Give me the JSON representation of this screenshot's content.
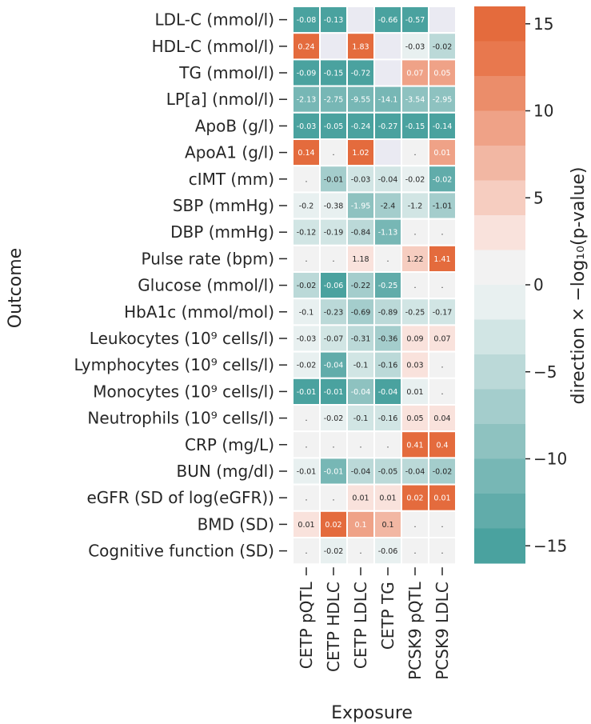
{
  "chart_data": {
    "type": "heatmap",
    "xlabel": "Exposure",
    "ylabel": "Outcome",
    "colorbar_label": "direction × −log₁₀(p-value)",
    "colorbar_ticks": [
      "15",
      "10",
      "5",
      "0",
      "−5",
      "−10",
      "−15"
    ],
    "colorbar_tick_values": [
      15,
      10,
      5,
      0,
      -5,
      -10,
      -15
    ],
    "colorbar_range": [
      -16,
      16
    ],
    "columns": [
      "CETP pQTL",
      "CETP HDLC",
      "CETP LDLC",
      "CETP TG",
      "PCSK9 pQTL",
      "PCSK9 LDLC"
    ],
    "rows": [
      {
        "label": "LDL-C (mmol/l)",
        "values": [
          -16,
          -16,
          null,
          -16,
          -16,
          null
        ],
        "labels": [
          "-0.08",
          "-0.13",
          "",
          "-0.66",
          "-0.57",
          ""
        ]
      },
      {
        "label": "HDL-C (mmol/l)",
        "values": [
          16,
          null,
          16,
          null,
          -0.5,
          -5.5
        ],
        "labels": [
          "0.24",
          "",
          "1.83",
          "",
          "-0.03",
          "-0.02"
        ]
      },
      {
        "label": "TG (mmol/l)",
        "values": [
          -16,
          -16,
          -16,
          null,
          9,
          8
        ],
        "labels": [
          "-0.09",
          "-0.15",
          "-0.72",
          "",
          "0.07",
          "0.05"
        ]
      },
      {
        "label": "LP[a] (nmol/l)",
        "values": [
          -11,
          -11,
          -11,
          -11,
          -8,
          -8
        ],
        "labels": [
          "-2.13",
          "-2.75",
          "-9.55",
          "-14.1",
          "-3.54",
          "-2.95"
        ]
      },
      {
        "label": "ApoB (g/l)",
        "values": [
          -16,
          -16,
          -16,
          -16,
          -16,
          -16
        ],
        "labels": [
          "-0.03",
          "-0.05",
          "-0.24",
          "-0.27",
          "-0.15",
          "-0.14"
        ]
      },
      {
        "label": "ApoA1 (g/l)",
        "values": [
          16,
          0,
          16,
          null,
          0,
          8
        ],
        "labels": [
          "0.14",
          ".",
          "1.02",
          "",
          ".",
          "0.01"
        ]
      },
      {
        "label": "cIMT (mm)",
        "values": [
          0,
          -6,
          -2,
          -2,
          -1,
          -13
        ],
        "labels": [
          ".",
          "-0.01",
          "-0.03",
          "-0.04",
          "-0.02",
          "-0.02"
        ]
      },
      {
        "label": "SBP (mmHg)",
        "values": [
          -1,
          -1,
          -9,
          -6,
          -2,
          -7
        ],
        "labels": [
          "-0.2",
          "-0.38",
          "-1.95",
          "-2.4",
          "-1.2",
          "-1.01"
        ]
      },
      {
        "label": "DBP (mmHg)",
        "values": [
          -2,
          -3,
          -4,
          -10,
          0,
          0
        ],
        "labels": [
          "-0.12",
          "-0.19",
          "-0.84",
          "-1.13",
          ".",
          "."
        ]
      },
      {
        "label": "Pulse rate (bpm)",
        "values": [
          0,
          0,
          2,
          0,
          4,
          16
        ],
        "labels": [
          ".",
          ".",
          "1.18",
          ".",
          "1.22",
          "1.41"
        ]
      },
      {
        "label": "Glucose (mmol/l)",
        "values": [
          -4,
          -16,
          -6,
          -12,
          0,
          0
        ],
        "labels": [
          "-0.02",
          "-0.06",
          "-0.22",
          "-0.25",
          ".",
          "."
        ]
      },
      {
        "label": "HbA1c (mmol/mol)",
        "values": [
          -1,
          -5,
          -6,
          -5,
          -2,
          -2
        ],
        "labels": [
          "-0.1",
          "-0.23",
          "-0.69",
          "-0.89",
          "-0.25",
          "-0.17"
        ]
      },
      {
        "label": "Leukocytes (10⁹ cells/l)",
        "values": [
          -1,
          -2,
          -5,
          -7,
          2,
          2
        ],
        "labels": [
          "-0.03",
          "-0.07",
          "-0.31",
          "-0.36",
          "0.09",
          "0.07"
        ]
      },
      {
        "label": "Lymphocytes (10⁹ cells/l)",
        "values": [
          -1,
          -13,
          -3,
          -4,
          1,
          0
        ],
        "labels": [
          "-0.02",
          "-0.04",
          "-0.1",
          "-0.16",
          "0.03",
          "."
        ]
      },
      {
        "label": "Monocytes (10⁹ cells/l)",
        "values": [
          -16,
          -16,
          -9,
          -16,
          -0.5,
          0
        ],
        "labels": [
          "-0.01",
          "-0.01",
          "-0.04",
          "-0.04",
          "0.01",
          "."
        ]
      },
      {
        "label": "Neutrophils (10⁹ cells/l)",
        "values": [
          0,
          -1,
          -2,
          -2,
          1,
          1
        ],
        "labels": [
          ".",
          "-0.02",
          "-0.1",
          "-0.16",
          "0.05",
          "0.04"
        ]
      },
      {
        "label": "CRP (mg/L)",
        "values": [
          0,
          0,
          0,
          0,
          16,
          16
        ],
        "labels": [
          ".",
          ".",
          ".",
          ".",
          "0.41",
          "0.4"
        ]
      },
      {
        "label": "BUN (mg/dl)",
        "values": [
          -1,
          -10,
          -4,
          -4,
          -4,
          -6
        ],
        "labels": [
          "-0.01",
          "-0.01",
          "-0.04",
          "-0.05",
          "-0.04",
          "-0.02"
        ]
      },
      {
        "label": "eGFR (SD of log(eGFR))",
        "values": [
          0,
          0,
          1,
          1,
          16,
          16
        ],
        "labels": [
          ".",
          ".",
          "0.01",
          "0.01",
          "0.02",
          "0.01"
        ]
      },
      {
        "label": "BMD (SD)",
        "values": [
          2,
          16,
          8,
          5,
          0,
          0
        ],
        "labels": [
          "0.01",
          "0.02",
          "0.1",
          "0.1",
          ".",
          "."
        ]
      },
      {
        "label": "Cognitive function (SD)",
        "values": [
          0,
          -1,
          0,
          -1,
          0,
          0
        ],
        "labels": [
          ".",
          "-0.02",
          ".",
          "-0.06",
          ".",
          "."
        ]
      }
    ]
  },
  "colors": {
    "negative_levels": [
      "#4aa29f",
      "#61acaa",
      "#77b7b5",
      "#8ec2c0",
      "#a4cdcc",
      "#bbd9d8",
      "#d1e5e4",
      "#e8f0f0"
    ],
    "neutral": "#f2f2f2",
    "positive_levels": [
      "#f9e2dc",
      "#f6cdc0",
      "#f2b7a3",
      "#efa287",
      "#eb8d6a",
      "#e8784e",
      "#e46b3d"
    ],
    "missing": "#eaeaf2",
    "grid": "#ffffff",
    "text_dark": "#262626",
    "text_light": "#ffffff"
  }
}
